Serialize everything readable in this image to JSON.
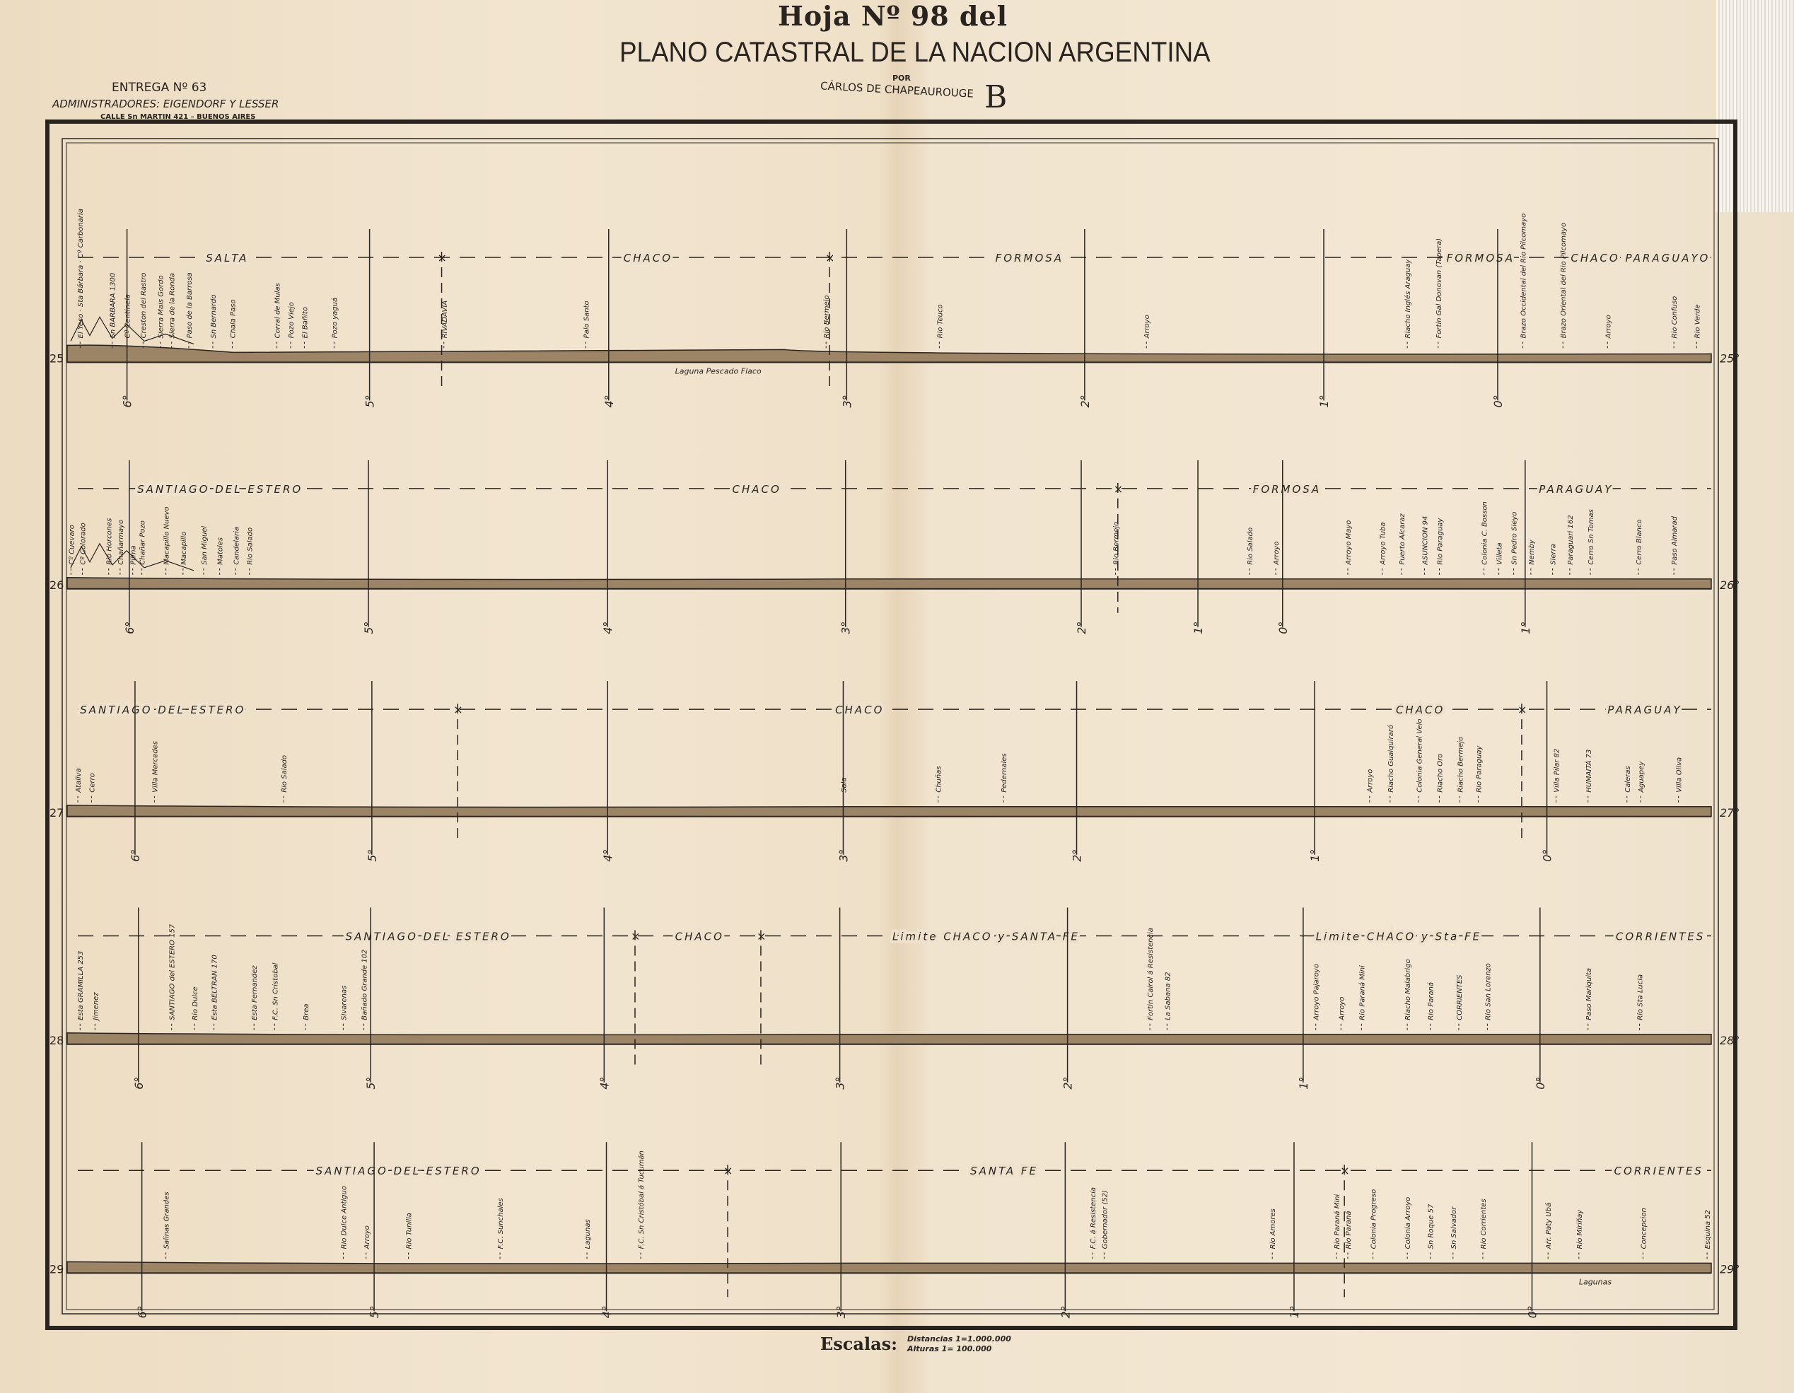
{
  "header": {
    "sheet_title": "Hoja Nº 98 del",
    "plan_title": "PLANO CATASTRAL DE LA NACION ARGENTINA",
    "por": "POR",
    "author": "CÁRLOS DE CHAPEAUROUGE",
    "sheet_letter": "B",
    "entrega": "ENTREGA Nº 63",
    "administradores": "ADMINISTRADORES: EIGENDORF Y LESSER",
    "calle": "CALLE Sn MARTIN 421 – BUENOS AIRES"
  },
  "scales": {
    "label": "Escalas:",
    "distancias": "Distancias 1=1.000.000",
    "alturas": "Alturas 1= 100.000"
  },
  "colors": {
    "paper": "#efe2cc",
    "ink": "#2a2420",
    "terrain": "#9c8466"
  },
  "profiles": [
    {
      "latitude_left": "25",
      "latitude_right": "25°",
      "longitudes": [
        "6°",
        "5°",
        "4°",
        "3°",
        "2°",
        "1°",
        "0°"
      ],
      "regions": [
        "SALTA",
        "CHACO",
        "FORMOSA",
        "FORMOSA",
        "CHACO PARAGUAYO"
      ],
      "places": [
        "El Yeso · Sta Bárbara · Cº Carbonaria",
        "Sn BARBARA 1300",
        "Cº Centinela",
        "Creston del Rastro",
        "Sierra Mais Gordo",
        "Sierra de la Ronda",
        "Paso de la Barrosa",
        "Sn Bernardo",
        "Chala Paso",
        "Corral de Mulas",
        "Pozo Viejo",
        "El Bañito",
        "Pozo yaguá",
        "RIVADAVIA",
        "Palo Santo",
        "Rio Bermejo",
        "Rio Teuco",
        "Arroyo",
        "Riacho Inglés Araguay",
        "Fortin Gal Donovan (Tapera)",
        "Brazo Occidental del Rio Pilcomayo",
        "Brazo Oriental del Rio Pilcomayo",
        "Arroyo",
        "Rio Confuso",
        "Rio Verde"
      ],
      "below_label": "Laguna Pescado Flaco"
    },
    {
      "latitude_left": "26",
      "latitude_right": "26°",
      "longitudes": [
        "6°",
        "5°",
        "4°",
        "3°",
        "2°",
        "1°",
        "0°",
        "1°"
      ],
      "regions": [
        "SANTIAGO DEL ESTERO",
        "CHACO",
        "FORMOSA",
        "PARAGUAY"
      ],
      "places": [
        "Cº Cuevaro",
        "Cº Colorado",
        "Rio Horcones",
        "Chañarmayo",
        "Pilma",
        "Chañar Pozo",
        "Macapillo Nuevo",
        "Macapillo",
        "San Miguel",
        "Matoles",
        "Candelaria",
        "Rio Salado",
        "Rio Bermejo",
        "Rio Salado",
        "Arroyo",
        "Arroyo Mayo",
        "Arroyo Tuba",
        "Puerto Alcaraz",
        "ASUNCION 94",
        "Rio Paraguay",
        "Colonia C. Bosson",
        "Villeta",
        "Sn Pedro Sieyo",
        "Nemby",
        "Sierra",
        "Paraguari 162",
        "Cerro Sn Tomas",
        "Cerro Blanco",
        "Paso Almarad"
      ]
    },
    {
      "latitude_left": "27",
      "latitude_right": "27°",
      "longitudes": [
        "6°",
        "5°",
        "4°",
        "3°",
        "2°",
        "1°",
        "0°"
      ],
      "regions": [
        "SANTIAGO DEL ESTERO",
        "CHACO",
        "CHACO",
        "PARAGUAY"
      ],
      "places": [
        "Ataliva",
        "Cerro",
        "Villa Mercedes",
        "Rio Salado",
        "Sala",
        "Chuñas",
        "Pedernales",
        "Arroyo",
        "Riacho Guaiquiraró",
        "Colonia General Velo",
        "Riacho Oro",
        "Riacho Bermejo",
        "Rio Paraguay",
        "Villa Pilar 82",
        "HUMAITÁ 73",
        "Caleras",
        "Aguapey",
        "Villa Oliva"
      ]
    },
    {
      "latitude_left": "28",
      "latitude_right": "28°",
      "longitudes": [
        "6°",
        "5°",
        "4°",
        "3°",
        "2°",
        "1°",
        "0°"
      ],
      "regions": [
        "SANTIAGO DEL ESTERO",
        "CHACO",
        "Limite CHACO y SANTA FE",
        "Limite CHACO y Sta FE",
        "CORRIENTES"
      ],
      "places": [
        "Esta GRAMILLA 253",
        "Jimenez",
        "SANTIAGO del ESTERO 157",
        "Rio Dulce",
        "Esta BELTRAN 170",
        "Esta Fernandez",
        "F.C. Sn Cristobal",
        "Brea",
        "Sivarenas",
        "Bañado Grande 102",
        "Fortin Cairol á Resistencia",
        "La Sabana 82",
        "Arroyo Pajaroyo",
        "Arroyo",
        "Rio Paraná Mini",
        "Riacho Malabrigo",
        "Rio Paraná",
        "CORRIENTES",
        "Rio San Lorenzo",
        "Paso Mariquita",
        "Rio Sta Lucia"
      ]
    },
    {
      "latitude_left": "29",
      "latitude_right": "29°",
      "longitudes": [
        "6°",
        "5°",
        "4°",
        "3°",
        "2°",
        "1°",
        "0°"
      ],
      "regions": [
        "SANTIAGO DEL ESTERO",
        "SANTA FE",
        "CORRIENTES"
      ],
      "places": [
        "Salinas Grandes",
        "Rio Dulce Antiguo",
        "Arroyo",
        "Rio Tunilla",
        "F.C. Sunchales",
        "Lagunas",
        "F.C. Sn Cristóbal á Tucumán",
        "F.C. á Resistencia",
        "Gobernador (52)",
        "Rio Amores",
        "Rio Paraná Mini",
        "Rio Paraná",
        "Colonia Progreso",
        "Colonia Arroyo",
        "Sn Roque 57",
        "Sn Salvador",
        "Rio Corrientes",
        "Arr. Paty Ubá",
        "Rio Miriñay",
        "Concepcion",
        "Esquina 52"
      ],
      "below_label": "Lagunas"
    }
  ]
}
